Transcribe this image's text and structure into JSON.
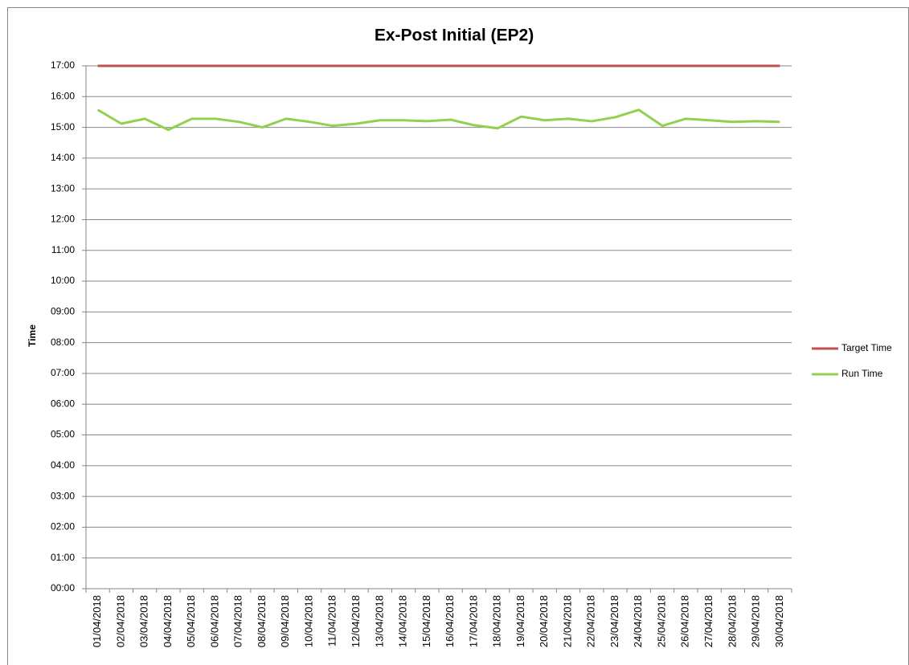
{
  "chart_data": {
    "type": "line",
    "title": "Ex-Post Initial (EP2)",
    "y_label": "Time",
    "categories": [
      "01/04/2018",
      "02/04/2018",
      "03/04/2018",
      "04/04/2018",
      "05/04/2018",
      "06/04/2018",
      "07/04/2018",
      "08/04/2018",
      "09/04/2018",
      "10/04/2018",
      "11/04/2018",
      "12/04/2018",
      "13/04/2018",
      "14/04/2018",
      "15/04/2018",
      "16/04/2018",
      "17/04/2018",
      "18/04/2018",
      "19/04/2018",
      "20/04/2018",
      "21/04/2018",
      "22/04/2018",
      "23/04/2018",
      "24/04/2018",
      "25/04/2018",
      "26/04/2018",
      "27/04/2018",
      "28/04/2018",
      "29/04/2018",
      "30/04/2018"
    ],
    "series": [
      {
        "name": "Target Time",
        "color": "#c0504d",
        "values": [
          17,
          17,
          17,
          17,
          17,
          17,
          17,
          17,
          17,
          17,
          17,
          17,
          17,
          17,
          17,
          17,
          17,
          17,
          17,
          17,
          17,
          17,
          17,
          17,
          17,
          17,
          17,
          17,
          17,
          17
        ]
      },
      {
        "name": "Run Time",
        "color": "#92d050",
        "values": [
          15.57,
          15.12,
          15.28,
          14.92,
          15.28,
          15.28,
          15.18,
          15.0,
          15.28,
          15.18,
          15.05,
          15.12,
          15.23,
          15.23,
          15.2,
          15.25,
          15.07,
          14.97,
          15.35,
          15.23,
          15.28,
          15.2,
          15.33,
          15.57,
          15.05,
          15.28,
          15.23,
          15.18,
          15.2,
          15.18
        ]
      }
    ],
    "ylim": [
      0,
      17
    ],
    "yticks": [
      {
        "value": 0,
        "label": "00:00"
      },
      {
        "value": 1,
        "label": "01:00"
      },
      {
        "value": 2,
        "label": "02:00"
      },
      {
        "value": 3,
        "label": "03:00"
      },
      {
        "value": 4,
        "label": "04:00"
      },
      {
        "value": 5,
        "label": "05:00"
      },
      {
        "value": 6,
        "label": "06:00"
      },
      {
        "value": 7,
        "label": "07:00"
      },
      {
        "value": 8,
        "label": "08:00"
      },
      {
        "value": 9,
        "label": "09:00"
      },
      {
        "value": 10,
        "label": "10:00"
      },
      {
        "value": 11,
        "label": "11:00"
      },
      {
        "value": 12,
        "label": "12:00"
      },
      {
        "value": 13,
        "label": "13:00"
      },
      {
        "value": 14,
        "label": "14:00"
      },
      {
        "value": 15,
        "label": "15:00"
      },
      {
        "value": 16,
        "label": "16:00"
      },
      {
        "value": 17,
        "label": "17:00"
      }
    ],
    "grid": true,
    "legend": "right"
  }
}
